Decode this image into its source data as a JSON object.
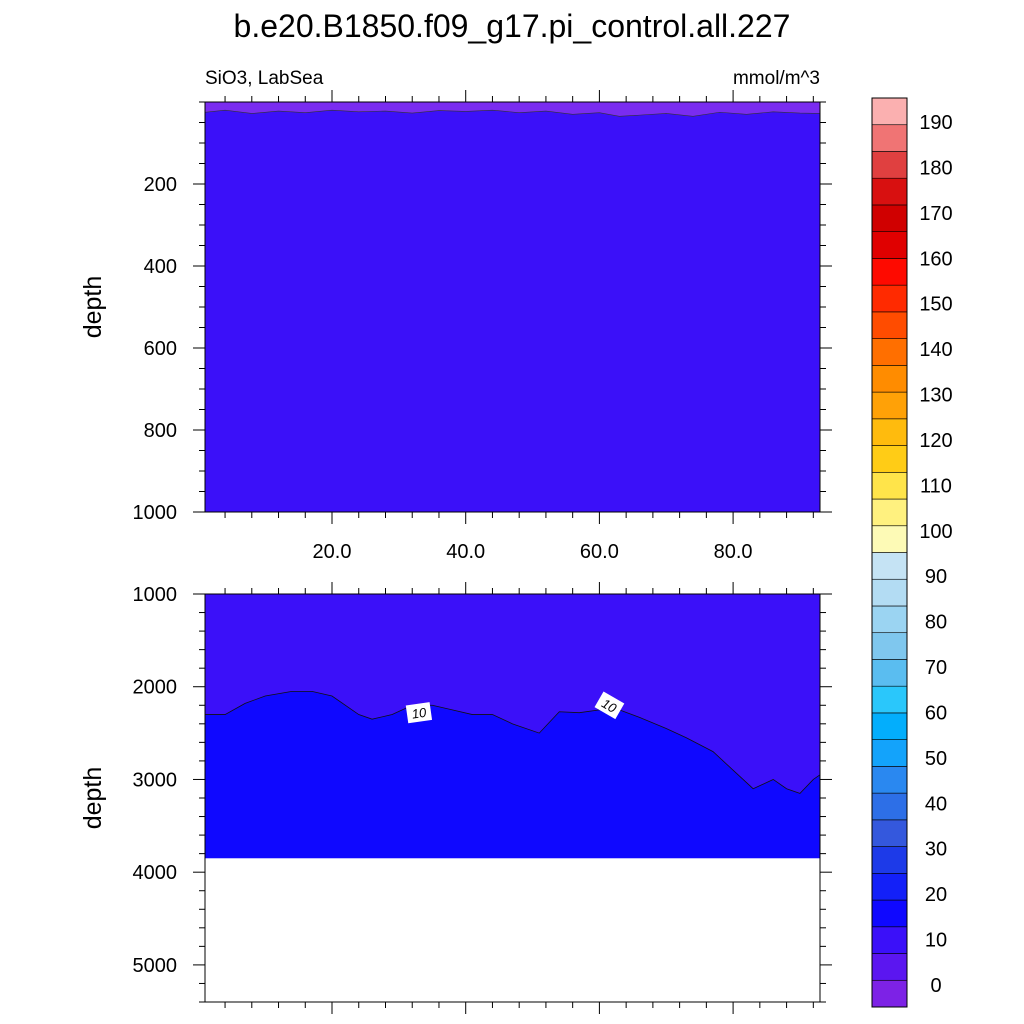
{
  "title": "b.e20.B1850.f09_g17.pi_control.all.227",
  "subtitle_left": "SiO3, LabSea",
  "subtitle_right": "mmol/m^3",
  "chart_data": [
    {
      "type": "heatmap",
      "panel": "upper",
      "ylabel": "depth",
      "ylim": [
        0,
        1000
      ],
      "xlim": [
        1,
        93
      ],
      "x_ticks": [
        20,
        40,
        60,
        80
      ],
      "x_tick_labels": [
        "20.0",
        "40.0",
        "60.0",
        "80.0"
      ],
      "y_ticks": [
        200,
        400,
        600,
        800,
        1000
      ],
      "y_tick_labels": [
        "200",
        "400",
        "600",
        "800",
        "1000"
      ],
      "levels": [
        {
          "name": "0-5",
          "color": "#7a2cf0"
        },
        {
          "name": "5-10",
          "color": "#3b10f9"
        }
      ],
      "contour_0_5_depth": {
        "x": [
          1,
          4,
          8,
          12,
          16,
          20,
          24,
          28,
          32,
          36,
          40,
          44,
          48,
          52,
          56,
          60,
          63,
          66,
          70,
          74,
          78,
          82,
          86,
          90,
          93
        ],
        "depth": [
          25,
          20,
          28,
          22,
          26,
          20,
          24,
          22,
          27,
          21,
          23,
          20,
          26,
          22,
          30,
          26,
          35,
          32,
          28,
          35,
          25,
          30,
          24,
          27,
          28
        ]
      }
    },
    {
      "type": "heatmap",
      "panel": "lower",
      "ylabel": "depth",
      "ylim": [
        1000,
        5400
      ],
      "xlim": [
        1,
        93
      ],
      "x_ticks": [
        20,
        40,
        60,
        80
      ],
      "y_ticks": [
        1000,
        2000,
        3000,
        4000,
        5000
      ],
      "y_tick_labels": [
        "1000",
        "2000",
        "3000",
        "4000",
        "5000"
      ],
      "ocean_floor_depth": 3850,
      "levels": [
        {
          "name": "5-10",
          "color": "#3b10f9"
        },
        {
          "name": "10-15",
          "color": "#0f08ff"
        }
      ],
      "contour_10": {
        "label": "10",
        "x": [
          1,
          4,
          7,
          10,
          14,
          17,
          20,
          24,
          26,
          29,
          32,
          35,
          38,
          41,
          44,
          47,
          51,
          54,
          57,
          60,
          63,
          66,
          70,
          73,
          77,
          80,
          83,
          86,
          88,
          90,
          92,
          93
        ],
        "depth": [
          2300,
          2300,
          2180,
          2100,
          2050,
          2050,
          2100,
          2300,
          2350,
          2300,
          2200,
          2200,
          2250,
          2300,
          2300,
          2400,
          2500,
          2270,
          2280,
          2250,
          2250,
          2330,
          2450,
          2550,
          2700,
          2900,
          3100,
          3000,
          3100,
          3150,
          3000,
          2950
        ],
        "label_positions": [
          [
            33,
            2280
          ],
          [
            61.5,
            2200
          ]
        ]
      }
    }
  ],
  "colorbar": {
    "colors": [
      "#7d22e6",
      "#5b16f0",
      "#3b10f9",
      "#0f08ff",
      "#1320f8",
      "#1d3ae8",
      "#3458dd",
      "#2d6fe7",
      "#2a88f0",
      "#13a3fb",
      "#03aefc",
      "#2ac7fb",
      "#5abdf0",
      "#7fc7ee",
      "#9bd4f2",
      "#b3dcf3",
      "#c5e3f4",
      "#fdfab6",
      "#fff17f",
      "#ffe44a",
      "#ffcc16",
      "#ffbb0d",
      "#ffa107",
      "#ff8c00",
      "#ff6f00",
      "#ff4c00",
      "#ff2a00",
      "#fe0a00",
      "#e00000",
      "#d00000",
      "#d81010",
      "#e04040",
      "#f07474",
      "#fbb0b0"
    ],
    "labels": [
      "0",
      "10",
      "20",
      "30",
      "40",
      "50",
      "60",
      "70",
      "80",
      "90",
      "100",
      "110",
      "120",
      "130",
      "140",
      "150",
      "160",
      "170",
      "180",
      "190"
    ]
  }
}
